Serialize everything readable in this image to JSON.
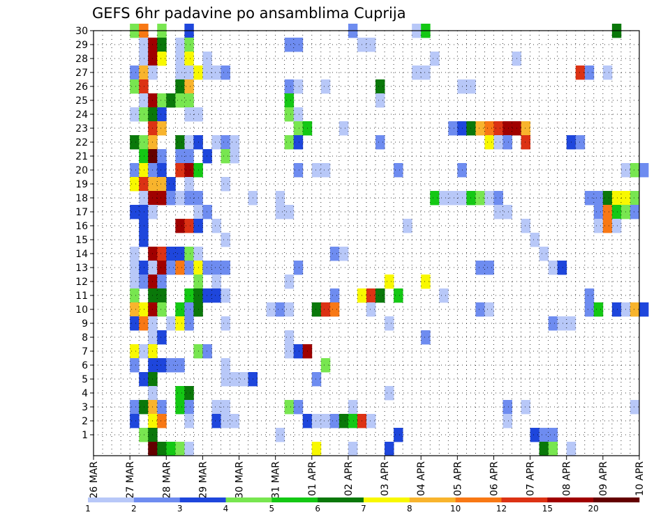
{
  "chart_data": {
    "type": "heatmap",
    "title": "GEFS 6hr padavine po ansamblima Cuprija",
    "xlabel": "",
    "ylabel": "",
    "y_ticks": [
      1,
      2,
      3,
      4,
      5,
      6,
      7,
      8,
      9,
      10,
      11,
      12,
      13,
      14,
      15,
      16,
      17,
      18,
      19,
      20,
      21,
      22,
      23,
      24,
      25,
      26,
      27,
      28,
      29,
      30
    ],
    "x_ticks": [
      "26 MAR",
      "27 MAR",
      "28 MAR",
      "29 MAR",
      "30 MAR",
      "31 MAR",
      "01 APR",
      "02 APR",
      "03 APR",
      "04 APR",
      "05 APR",
      "06 APR",
      "07 APR",
      "08 APR",
      "09 APR",
      "10 APR"
    ],
    "x_range": [
      "26 MAR 00Z",
      "10 APR 00Z"
    ],
    "y_range": [
      0,
      30
    ],
    "time_step_hours": 6,
    "grid": "dotted",
    "legend": {
      "position": "bottom",
      "breaks": [
        "1",
        "2",
        "3",
        "4",
        "5",
        "6",
        "7",
        "8",
        "10",
        "12",
        "15",
        "20"
      ],
      "colors": [
        "#b8c8f8",
        "#6e8cf0",
        "#1e46dc",
        "#78e650",
        "#14c814",
        "#0a780a",
        "#f8f800",
        "#f8b42d",
        "#f87814",
        "#dc3214",
        "#a00000",
        "#640000"
      ]
    },
    "cells": [
      [
        30,
        4,
        4
      ],
      [
        30,
        5,
        9
      ],
      [
        30,
        7,
        4
      ],
      [
        30,
        10,
        3
      ],
      [
        30,
        28,
        2
      ],
      [
        30,
        35,
        1
      ],
      [
        30,
        36,
        5
      ],
      [
        30,
        57,
        6
      ],
      [
        29,
        5,
        1
      ],
      [
        29,
        6,
        11
      ],
      [
        29,
        7,
        6
      ],
      [
        29,
        9,
        1
      ],
      [
        29,
        10,
        4
      ],
      [
        29,
        21,
        2
      ],
      [
        29,
        22,
        2
      ],
      [
        29,
        29,
        1
      ],
      [
        29,
        30,
        1
      ],
      [
        28,
        5,
        1
      ],
      [
        28,
        6,
        11
      ],
      [
        28,
        7,
        7
      ],
      [
        28,
        9,
        1
      ],
      [
        28,
        10,
        7
      ],
      [
        28,
        12,
        1
      ],
      [
        28,
        37,
        1
      ],
      [
        28,
        46,
        1
      ],
      [
        27,
        4,
        2
      ],
      [
        27,
        5,
        8
      ],
      [
        27,
        6,
        1
      ],
      [
        27,
        9,
        1
      ],
      [
        27,
        10,
        1
      ],
      [
        27,
        11,
        7
      ],
      [
        27,
        12,
        1
      ],
      [
        27,
        13,
        1
      ],
      [
        27,
        14,
        2
      ],
      [
        27,
        35,
        1
      ],
      [
        27,
        36,
        1
      ],
      [
        27,
        53,
        10
      ],
      [
        27,
        54,
        2
      ],
      [
        27,
        56,
        1
      ],
      [
        26,
        4,
        4
      ],
      [
        26,
        5,
        10
      ],
      [
        26,
        9,
        6
      ],
      [
        26,
        10,
        8
      ],
      [
        26,
        21,
        2
      ],
      [
        26,
        22,
        1
      ],
      [
        26,
        25,
        1
      ],
      [
        26,
        31,
        6
      ],
      [
        26,
        40,
        1
      ],
      [
        26,
        41,
        1
      ],
      [
        25,
        5,
        1
      ],
      [
        25,
        6,
        11
      ],
      [
        25,
        7,
        4
      ],
      [
        25,
        8,
        6
      ],
      [
        25,
        9,
        4
      ],
      [
        25,
        10,
        4
      ],
      [
        25,
        21,
        5
      ],
      [
        25,
        31,
        1
      ],
      [
        24,
        4,
        1
      ],
      [
        24,
        5,
        4
      ],
      [
        24,
        6,
        6
      ],
      [
        24,
        7,
        3
      ],
      [
        24,
        10,
        1
      ],
      [
        24,
        11,
        1
      ],
      [
        24,
        21,
        4
      ],
      [
        24,
        22,
        1
      ],
      [
        23,
        6,
        10
      ],
      [
        23,
        7,
        8
      ],
      [
        23,
        22,
        4
      ],
      [
        23,
        23,
        5
      ],
      [
        23,
        27,
        1
      ],
      [
        23,
        39,
        2
      ],
      [
        23,
        40,
        3
      ],
      [
        23,
        41,
        6
      ],
      [
        23,
        42,
        8
      ],
      [
        23,
        43,
        9
      ],
      [
        23,
        44,
        10
      ],
      [
        23,
        45,
        11
      ],
      [
        23,
        46,
        11
      ],
      [
        23,
        47,
        8
      ],
      [
        22,
        4,
        6
      ],
      [
        22,
        5,
        4
      ],
      [
        22,
        6,
        8
      ],
      [
        22,
        9,
        6
      ],
      [
        22,
        10,
        1
      ],
      [
        22,
        11,
        3
      ],
      [
        22,
        13,
        1
      ],
      [
        22,
        14,
        2
      ],
      [
        22,
        15,
        1
      ],
      [
        22,
        21,
        4
      ],
      [
        22,
        22,
        3
      ],
      [
        22,
        31,
        2
      ],
      [
        22,
        43,
        7
      ],
      [
        22,
        44,
        1
      ],
      [
        22,
        45,
        2
      ],
      [
        22,
        47,
        10
      ],
      [
        22,
        52,
        3
      ],
      [
        22,
        53,
        2
      ],
      [
        21,
        5,
        5
      ],
      [
        21,
        6,
        12
      ],
      [
        21,
        7,
        2
      ],
      [
        21,
        9,
        2
      ],
      [
        21,
        10,
        2
      ],
      [
        21,
        12,
        3
      ],
      [
        21,
        14,
        4
      ],
      [
        21,
        15,
        1
      ],
      [
        20,
        4,
        2
      ],
      [
        20,
        5,
        7
      ],
      [
        20,
        6,
        2
      ],
      [
        20,
        7,
        3
      ],
      [
        20,
        9,
        10
      ],
      [
        20,
        10,
        11
      ],
      [
        20,
        11,
        5
      ],
      [
        20,
        22,
        2
      ],
      [
        20,
        24,
        1
      ],
      [
        20,
        25,
        1
      ],
      [
        20,
        33,
        2
      ],
      [
        20,
        40,
        2
      ],
      [
        20,
        58,
        1
      ],
      [
        20,
        59,
        4
      ],
      [
        20,
        60,
        2
      ],
      [
        19,
        4,
        7
      ],
      [
        19,
        5,
        10
      ],
      [
        19,
        6,
        8
      ],
      [
        19,
        7,
        8
      ],
      [
        19,
        8,
        3
      ],
      [
        19,
        10,
        1
      ],
      [
        19,
        14,
        1
      ],
      [
        18,
        5,
        1
      ],
      [
        18,
        6,
        11
      ],
      [
        18,
        7,
        11
      ],
      [
        18,
        8,
        2
      ],
      [
        18,
        9,
        1
      ],
      [
        18,
        10,
        2
      ],
      [
        18,
        11,
        2
      ],
      [
        18,
        17,
        1
      ],
      [
        18,
        20,
        1
      ],
      [
        18,
        37,
        5
      ],
      [
        18,
        38,
        1
      ],
      [
        18,
        39,
        1
      ],
      [
        18,
        40,
        1
      ],
      [
        18,
        41,
        5
      ],
      [
        18,
        42,
        4
      ],
      [
        18,
        43,
        1
      ],
      [
        18,
        44,
        2
      ],
      [
        18,
        54,
        2
      ],
      [
        18,
        55,
        2
      ],
      [
        18,
        56,
        6
      ],
      [
        18,
        57,
        7
      ],
      [
        18,
        58,
        7
      ],
      [
        18,
        59,
        4
      ],
      [
        17,
        4,
        3
      ],
      [
        17,
        5,
        3
      ],
      [
        17,
        6,
        1
      ],
      [
        17,
        11,
        1
      ],
      [
        17,
        12,
        2
      ],
      [
        17,
        20,
        1
      ],
      [
        17,
        21,
        1
      ],
      [
        17,
        44,
        1
      ],
      [
        17,
        45,
        1
      ],
      [
        17,
        55,
        2
      ],
      [
        17,
        56,
        9
      ],
      [
        17,
        57,
        5
      ],
      [
        17,
        58,
        4
      ],
      [
        17,
        59,
        2
      ],
      [
        16,
        5,
        3
      ],
      [
        16,
        9,
        11
      ],
      [
        16,
        10,
        10
      ],
      [
        16,
        11,
        3
      ],
      [
        16,
        13,
        1
      ],
      [
        16,
        34,
        1
      ],
      [
        16,
        47,
        1
      ],
      [
        16,
        55,
        1
      ],
      [
        16,
        56,
        9
      ],
      [
        16,
        57,
        1
      ],
      [
        15,
        5,
        3
      ],
      [
        15,
        14,
        1
      ],
      [
        15,
        48,
        1
      ],
      [
        14,
        4,
        1
      ],
      [
        14,
        6,
        11
      ],
      [
        14,
        7,
        10
      ],
      [
        14,
        8,
        3
      ],
      [
        14,
        9,
        3
      ],
      [
        14,
        10,
        4
      ],
      [
        14,
        11,
        1
      ],
      [
        14,
        26,
        2
      ],
      [
        14,
        27,
        1
      ],
      [
        14,
        49,
        1
      ],
      [
        13,
        4,
        1
      ],
      [
        13,
        5,
        3
      ],
      [
        13,
        6,
        1
      ],
      [
        13,
        7,
        11
      ],
      [
        13,
        8,
        2
      ],
      [
        13,
        9,
        9
      ],
      [
        13,
        10,
        2
      ],
      [
        13,
        11,
        7
      ],
      [
        13,
        12,
        2
      ],
      [
        13,
        13,
        2
      ],
      [
        13,
        14,
        2
      ],
      [
        13,
        22,
        2
      ],
      [
        13,
        42,
        2
      ],
      [
        13,
        43,
        2
      ],
      [
        13,
        50,
        1
      ],
      [
        13,
        51,
        3
      ],
      [
        12,
        4,
        1
      ],
      [
        12,
        5,
        2
      ],
      [
        12,
        6,
        11
      ],
      [
        12,
        7,
        2
      ],
      [
        12,
        11,
        4
      ],
      [
        12,
        13,
        1
      ],
      [
        12,
        21,
        1
      ],
      [
        12,
        32,
        7
      ],
      [
        12,
        36,
        7
      ],
      [
        11,
        4,
        4
      ],
      [
        11,
        6,
        6
      ],
      [
        11,
        7,
        6
      ],
      [
        11,
        10,
        5
      ],
      [
        11,
        11,
        6
      ],
      [
        11,
        12,
        3
      ],
      [
        11,
        13,
        3
      ],
      [
        11,
        14,
        1
      ],
      [
        11,
        26,
        2
      ],
      [
        11,
        29,
        7
      ],
      [
        11,
        30,
        10
      ],
      [
        11,
        31,
        6
      ],
      [
        11,
        33,
        5
      ],
      [
        11,
        38,
        1
      ],
      [
        11,
        54,
        2
      ],
      [
        10,
        4,
        8
      ],
      [
        10,
        5,
        7
      ],
      [
        10,
        6,
        11
      ],
      [
        10,
        7,
        4
      ],
      [
        10,
        9,
        5
      ],
      [
        10,
        10,
        2
      ],
      [
        10,
        11,
        6
      ],
      [
        10,
        19,
        1
      ],
      [
        10,
        20,
        2
      ],
      [
        10,
        21,
        1
      ],
      [
        10,
        24,
        6
      ],
      [
        10,
        25,
        10
      ],
      [
        10,
        26,
        9
      ],
      [
        10,
        30,
        1
      ],
      [
        10,
        42,
        2
      ],
      [
        10,
        43,
        1
      ],
      [
        10,
        54,
        2
      ],
      [
        10,
        55,
        5
      ],
      [
        10,
        57,
        3
      ],
      [
        10,
        58,
        1
      ],
      [
        10,
        59,
        8
      ],
      [
        10,
        60,
        3
      ],
      [
        9,
        4,
        3
      ],
      [
        9,
        5,
        9
      ],
      [
        9,
        6,
        1
      ],
      [
        9,
        8,
        1
      ],
      [
        9,
        9,
        7
      ],
      [
        9,
        10,
        2
      ],
      [
        9,
        14,
        1
      ],
      [
        9,
        32,
        1
      ],
      [
        9,
        50,
        2
      ],
      [
        9,
        51,
        1
      ],
      [
        9,
        52,
        1
      ],
      [
        8,
        6,
        1
      ],
      [
        8,
        7,
        3
      ],
      [
        8,
        21,
        1
      ],
      [
        8,
        36,
        2
      ],
      [
        7,
        4,
        7
      ],
      [
        7,
        5,
        1
      ],
      [
        7,
        6,
        7
      ],
      [
        7,
        11,
        4
      ],
      [
        7,
        12,
        2
      ],
      [
        7,
        21,
        1
      ],
      [
        7,
        22,
        3
      ],
      [
        7,
        23,
        11
      ],
      [
        6,
        4,
        2
      ],
      [
        6,
        6,
        3
      ],
      [
        6,
        7,
        3
      ],
      [
        6,
        8,
        2
      ],
      [
        6,
        9,
        2
      ],
      [
        6,
        14,
        1
      ],
      [
        6,
        25,
        4
      ],
      [
        5,
        5,
        3
      ],
      [
        5,
        6,
        6
      ],
      [
        5,
        14,
        1
      ],
      [
        5,
        15,
        1
      ],
      [
        5,
        16,
        1
      ],
      [
        5,
        17,
        3
      ],
      [
        5,
        24,
        2
      ],
      [
        4,
        6,
        1
      ],
      [
        4,
        9,
        5
      ],
      [
        4,
        10,
        6
      ],
      [
        4,
        32,
        1
      ],
      [
        3,
        4,
        2
      ],
      [
        3,
        5,
        6
      ],
      [
        3,
        6,
        8
      ],
      [
        3,
        7,
        2
      ],
      [
        3,
        9,
        5
      ],
      [
        3,
        10,
        2
      ],
      [
        3,
        13,
        1
      ],
      [
        3,
        14,
        1
      ],
      [
        3,
        21,
        4
      ],
      [
        3,
        22,
        2
      ],
      [
        3,
        28,
        1
      ],
      [
        3,
        45,
        2
      ],
      [
        3,
        47,
        1
      ],
      [
        3,
        59,
        1
      ],
      [
        2,
        4,
        3
      ],
      [
        2,
        6,
        7
      ],
      [
        2,
        7,
        9
      ],
      [
        2,
        10,
        1
      ],
      [
        2,
        13,
        3
      ],
      [
        2,
        14,
        1
      ],
      [
        2,
        15,
        1
      ],
      [
        2,
        23,
        3
      ],
      [
        2,
        24,
        1
      ],
      [
        2,
        25,
        1
      ],
      [
        2,
        26,
        2
      ],
      [
        2,
        27,
        6
      ],
      [
        2,
        28,
        5
      ],
      [
        2,
        29,
        10
      ],
      [
        2,
        30,
        1
      ],
      [
        2,
        45,
        1
      ],
      [
        1,
        5,
        4
      ],
      [
        1,
        6,
        6
      ],
      [
        1,
        20,
        1
      ],
      [
        1,
        33,
        3
      ],
      [
        1,
        48,
        3
      ],
      [
        1,
        49,
        2
      ],
      [
        1,
        50,
        2
      ],
      [
        0,
        6,
        12
      ],
      [
        0,
        7,
        6
      ],
      [
        0,
        8,
        5
      ],
      [
        0,
        9,
        4
      ],
      [
        0,
        10,
        1
      ],
      [
        0,
        24,
        7
      ],
      [
        0,
        28,
        1
      ],
      [
        0,
        32,
        3
      ],
      [
        0,
        49,
        6
      ],
      [
        0,
        50,
        4
      ],
      [
        0,
        52,
        1
      ]
    ]
  }
}
